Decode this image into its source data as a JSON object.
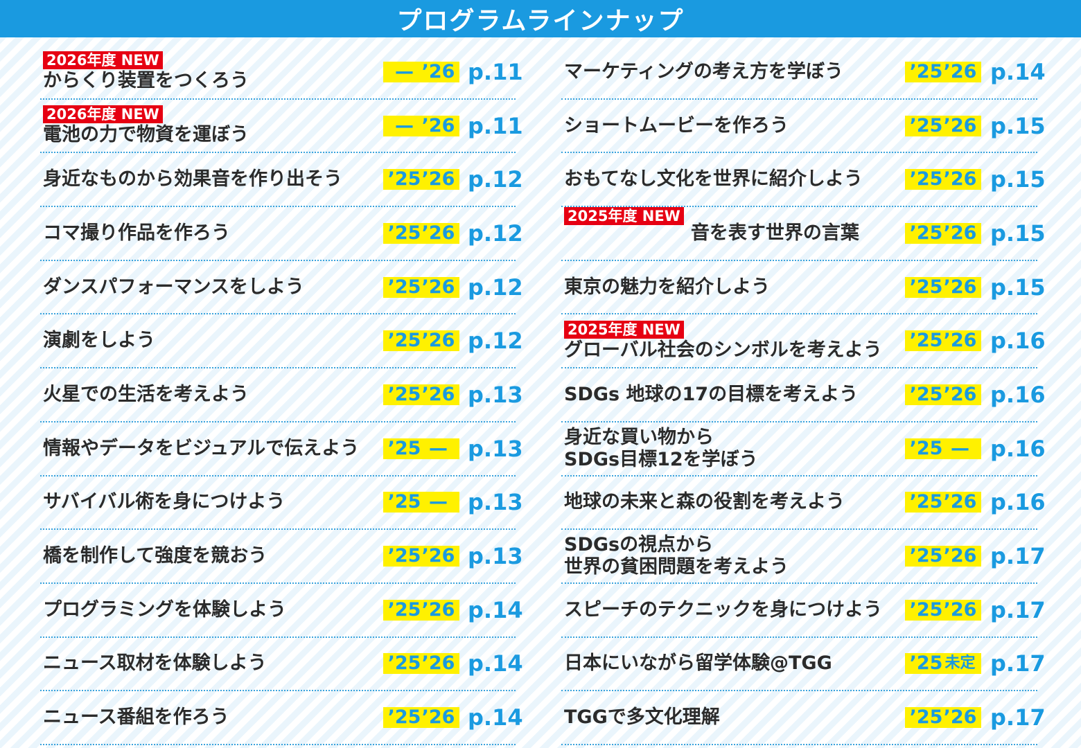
{
  "header": {
    "title": "プログラムラインナップ"
  },
  "colors": {
    "header_bg": "#1a9ae0",
    "badge_bg": "#e60012",
    "year_bg": "#fff100",
    "accent_text": "#1a9ae0"
  },
  "columns": [
    {
      "items": [
        {
          "badge": "2026年度 NEW",
          "title": "からくり装置をつくろう",
          "y25": "—",
          "y26": "’26",
          "page": "p.11"
        },
        {
          "badge": "2026年度 NEW",
          "title": "電池の力で物資を運ぼう",
          "y25": "—",
          "y26": "’26",
          "page": "p.11"
        },
        {
          "badge": "",
          "title": "身近なものから効果音を作り出そう",
          "y25": "’25",
          "y26": "’26",
          "page": "p.12"
        },
        {
          "badge": "",
          "title": "コマ撮り作品を作ろう",
          "y25": "’25",
          "y26": "’26",
          "page": "p.12"
        },
        {
          "badge": "",
          "title": "ダンスパフォーマンスをしよう",
          "y25": "’25",
          "y26": "’26",
          "page": "p.12"
        },
        {
          "badge": "",
          "title": "演劇をしよう",
          "y25": "’25",
          "y26": "’26",
          "page": "p.12"
        },
        {
          "badge": "",
          "title": "火星での生活を考えよう",
          "y25": "’25",
          "y26": "’26",
          "page": "p.13"
        },
        {
          "badge": "",
          "title": "情報やデータをビジュアルで伝えよう",
          "y25": "’25",
          "y26": "—",
          "page": "p.13"
        },
        {
          "badge": "",
          "title": "サバイバル術を身につけよう",
          "y25": "’25",
          "y26": "—",
          "page": "p.13"
        },
        {
          "badge": "",
          "title": "橋を制作して強度を競おう",
          "y25": "’25",
          "y26": "’26",
          "page": "p.13"
        },
        {
          "badge": "",
          "title": "プログラミングを体験しよう",
          "y25": "’25",
          "y26": "’26",
          "page": "p.14"
        },
        {
          "badge": "",
          "title": "ニュース取材を体験しよう",
          "y25": "’25",
          "y26": "’26",
          "page": "p.14"
        },
        {
          "badge": "",
          "title": "ニュース番組を作ろう",
          "y25": "’25",
          "y26": "’26",
          "page": "p.14"
        }
      ]
    },
    {
      "items": [
        {
          "badge": "",
          "title": "マーケティングの考え方を学ぼう",
          "y25": "’25",
          "y26": "’26",
          "page": "p.14"
        },
        {
          "badge": "",
          "title": "ショートムービーを作ろう",
          "y25": "’25",
          "y26": "’26",
          "page": "p.15"
        },
        {
          "badge": "",
          "title": "おもてなし文化を世界に紹介しよう",
          "y25": "’25",
          "y26": "’26",
          "page": "p.15"
        },
        {
          "badge": "2025年度 NEW",
          "title": "音を表す世界の言葉",
          "y25": "’25",
          "y26": "’26",
          "page": "p.15",
          "inline": true
        },
        {
          "badge": "",
          "title": "東京の魅力を紹介しよう",
          "y25": "’25",
          "y26": "’26",
          "page": "p.15"
        },
        {
          "badge": "2025年度 NEW",
          "title": "グローバル社会のシンボルを考えよう",
          "y25": "’25",
          "y26": "’26",
          "page": "p.16"
        },
        {
          "badge": "",
          "title": "SDGs 地球の17の目標を考えよう",
          "y25": "’25",
          "y26": "’26",
          "page": "p.16"
        },
        {
          "badge": "",
          "title": "身近な買い物から\nSDGs目標12を学ぼう",
          "y25": "’25",
          "y26": "—",
          "page": "p.16"
        },
        {
          "badge": "",
          "title": "地球の未来と森の役割を考えよう",
          "y25": "’25",
          "y26": "’26",
          "page": "p.16"
        },
        {
          "badge": "",
          "title": "SDGsの視点から\n世界の貧困問題を考えよう",
          "y25": "’25",
          "y26": "’26",
          "page": "p.17"
        },
        {
          "badge": "",
          "title": "スピーチのテクニックを身につけよう",
          "y25": "’25",
          "y26": "’26",
          "page": "p.17"
        },
        {
          "badge": "",
          "title": "日本にいながら留学体験@TGG",
          "y25": "’25",
          "y26": "未定",
          "page": "p.17"
        },
        {
          "badge": "",
          "title": "TGGで多文化理解",
          "y25": "’25",
          "y26": "’26",
          "page": "p.17"
        }
      ]
    }
  ]
}
